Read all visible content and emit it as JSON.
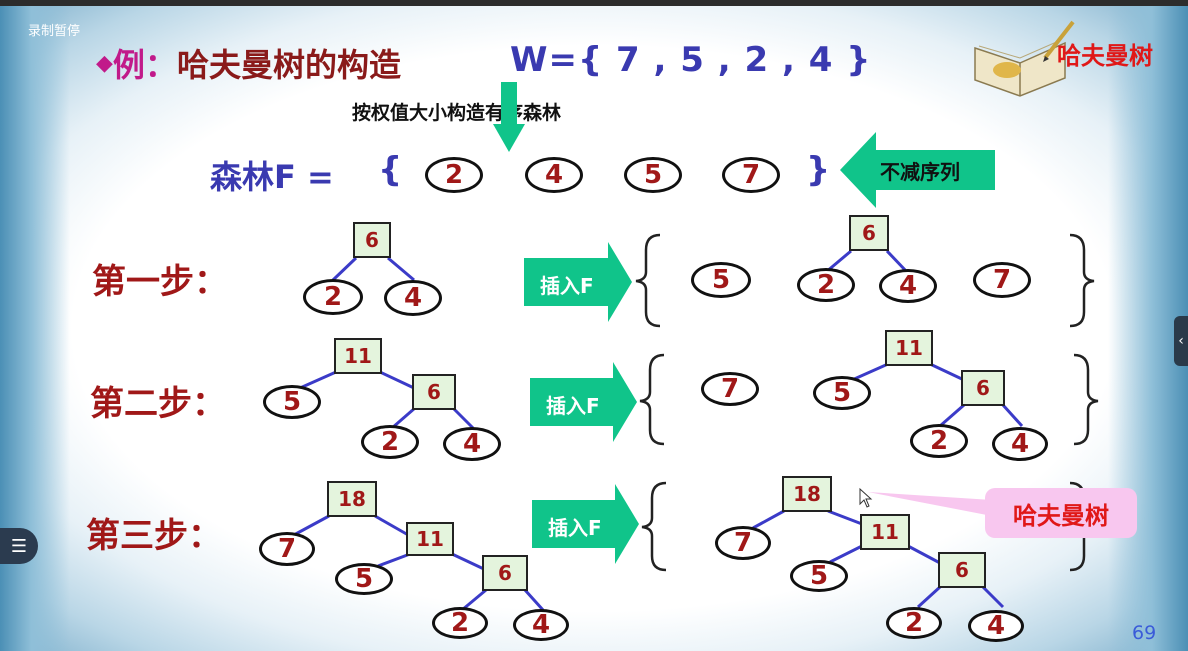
{
  "recording": {
    "label": "录制暂停"
  },
  "title": {
    "bullet": "◆",
    "prefix": "例：",
    "main": "哈夫曼树的构造",
    "weights": "W={ 7 , 5 , 2 , 4 }"
  },
  "header_badge": {
    "label": "哈夫曼树"
  },
  "subtitle": "按权值大小构造有序森林",
  "forest": {
    "label": "森林F =",
    "open": "{",
    "close": "}",
    "values": [
      "2",
      "4",
      "5",
      "7"
    ],
    "note": "不减序列"
  },
  "steps": [
    {
      "label": "第一步：",
      "action": "插入F"
    },
    {
      "label": "第二步：",
      "action": "插入F"
    },
    {
      "label": "第三步：",
      "action": "插入F"
    }
  ],
  "step1": {
    "root": "6",
    "left": "2",
    "right": "4",
    "forest": [
      "5",
      "6",
      "2",
      "4",
      "7"
    ]
  },
  "step2": {
    "root": "11",
    "leaf": "5",
    "sub": "6",
    "a": "2",
    "b": "4",
    "forest7": "7",
    "f_root": "11",
    "f_leaf": "5",
    "f_sub": "6",
    "f_a": "2",
    "f_b": "4"
  },
  "step3": {
    "root": "18",
    "leaf7": "7",
    "n11": "11",
    "leaf5": "5",
    "n6": "6",
    "a": "2",
    "b": "4",
    "f_root": "18",
    "f_leaf7": "7",
    "f_n11": "11",
    "f_leaf5": "5",
    "f_n6": "6",
    "f_a": "2",
    "f_b": "4"
  },
  "callout": "哈夫曼树",
  "page_number": "69",
  "colors": {
    "node_text": "#a01818",
    "accent_arrow": "#10c48a",
    "edge": "#3b3bc8",
    "title_blue": "#3a3ab0"
  }
}
